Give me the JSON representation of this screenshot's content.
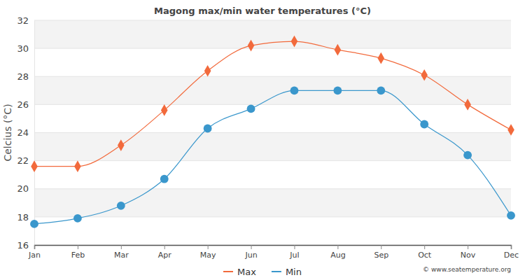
{
  "chart_data": {
    "type": "line",
    "title": "Magong max/min water temperatures (°C)",
    "y_label": "Celcius (°C)",
    "categories": [
      "Jan",
      "Feb",
      "Mar",
      "Apr",
      "May",
      "Jun",
      "Jul",
      "Aug",
      "Sep",
      "Oct",
      "Nov",
      "Dec"
    ],
    "series": [
      {
        "name": "Max",
        "color": "#f26a3c",
        "marker": "diamond",
        "values": [
          21.6,
          21.6,
          23.1,
          25.6,
          28.4,
          30.2,
          30.5,
          29.9,
          29.3,
          28.1,
          26.0,
          24.2
        ]
      },
      {
        "name": "Min",
        "color": "#3a97cc",
        "marker": "circle",
        "values": [
          17.5,
          17.9,
          18.8,
          20.7,
          24.3,
          25.7,
          27.0,
          27.0,
          27.0,
          24.6,
          22.4,
          18.1
        ]
      }
    ],
    "ylim": [
      16,
      32
    ],
    "yticks": [
      16,
      18,
      20,
      22,
      24,
      26,
      28,
      30,
      32
    ],
    "grid": true,
    "legend": "bottom",
    "annotations": [
      "© www.seatemperature.org"
    ]
  }
}
